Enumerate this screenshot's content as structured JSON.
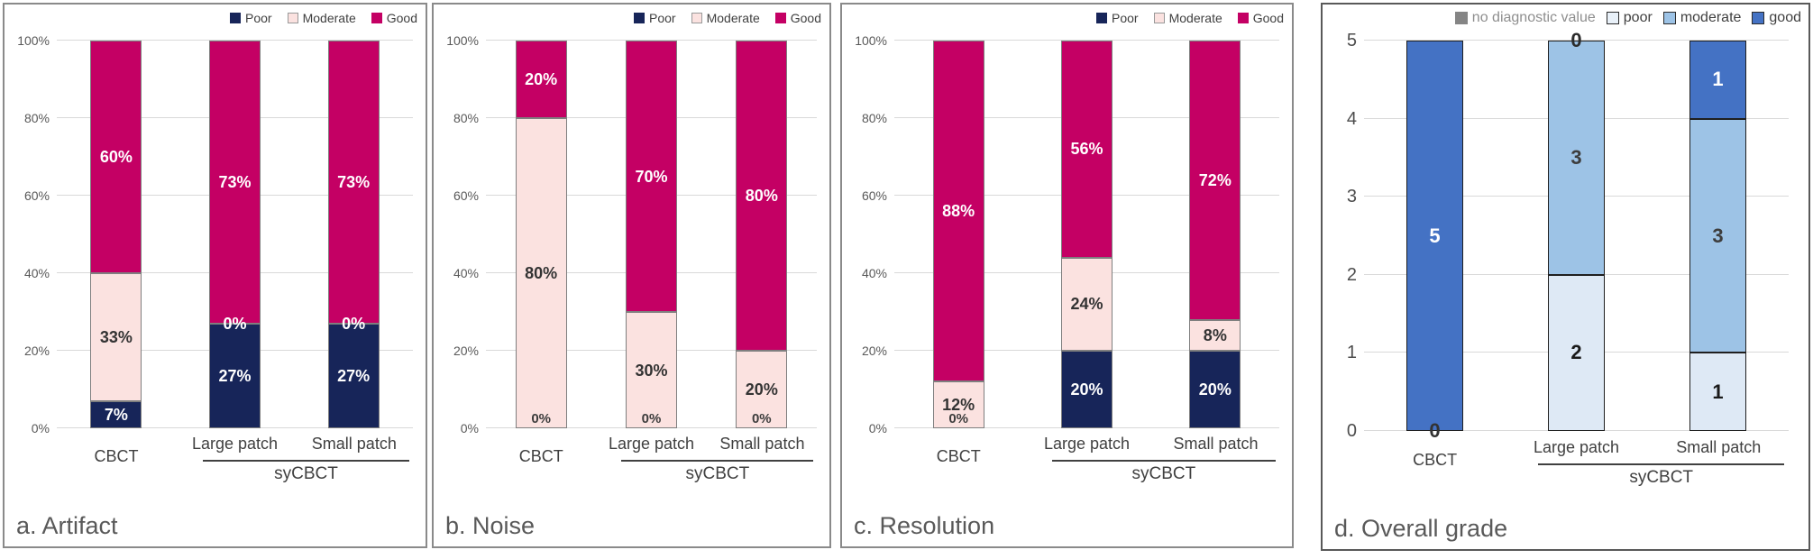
{
  "figure": {
    "background": "#FFFFFF",
    "description_titles": [
      "a. Artifact",
      "b. Noise",
      "c. Resolution",
      "d. Overall grade"
    ]
  },
  "chart_data": [
    {
      "panel_id": "a",
      "type": "bar",
      "stacked": true,
      "title": "a. Artifact",
      "categories": [
        "CBCT",
        "Large patch",
        "Small patch"
      ],
      "group_label": "syCBCT",
      "grouped_categories": [
        "Large patch",
        "Small patch"
      ],
      "ylim": [
        0,
        100
      ],
      "yticks": [
        "0%",
        "20%",
        "40%",
        "60%",
        "80%",
        "100%"
      ],
      "grid": true,
      "legend_position": "top-right",
      "legend": [
        {
          "label": "Poor",
          "fill": "#172559",
          "border": "#172559"
        },
        {
          "label": "Moderate",
          "fill": "#FBE2E0",
          "border": "#999999"
        },
        {
          "label": "Good",
          "fill": "#C40064",
          "border": "#C40064"
        }
      ],
      "series": [
        {
          "name": "Poor",
          "color": "#172559",
          "values": [
            7,
            27,
            27
          ],
          "labels": [
            {
              "text": "7%",
              "color": "#FFFFFF",
              "place": "center"
            },
            {
              "text": "27%",
              "color": "#FFFFFF",
              "place": "center"
            },
            {
              "text": "27%",
              "color": "#FFFFFF",
              "place": "center"
            }
          ]
        },
        {
          "name": "Moderate",
          "color": "#FBE2E0",
          "values": [
            33,
            0,
            0
          ],
          "labels": [
            {
              "text": "33%",
              "color": "#333333",
              "place": "center"
            },
            {
              "text": "0%",
              "color": "#FFFFFF",
              "place": "top-edge"
            },
            {
              "text": "0%",
              "color": "#FFFFFF",
              "place": "top-edge"
            }
          ]
        },
        {
          "name": "Good",
          "color": "#C40064",
          "values": [
            60,
            73,
            73
          ],
          "labels": [
            {
              "text": "60%",
              "color": "#FFFFFF",
              "place": "center"
            },
            {
              "text": "73%",
              "color": "#FFFFFF",
              "place": "center"
            },
            {
              "text": "73%",
              "color": "#FFFFFF",
              "place": "center"
            }
          ]
        }
      ]
    },
    {
      "panel_id": "b",
      "type": "bar",
      "stacked": true,
      "title": "b. Noise",
      "categories": [
        "CBCT",
        "Large patch",
        "Small patch"
      ],
      "group_label": "syCBCT",
      "grouped_categories": [
        "Large patch",
        "Small patch"
      ],
      "ylim": [
        0,
        100
      ],
      "yticks": [
        "0%",
        "20%",
        "40%",
        "60%",
        "80%",
        "100%"
      ],
      "grid": true,
      "legend_position": "top-right",
      "legend": [
        {
          "label": "Poor",
          "fill": "#172559",
          "border": "#172559"
        },
        {
          "label": "Moderate",
          "fill": "#FBE2E0",
          "border": "#999999"
        },
        {
          "label": "Good",
          "fill": "#C40064",
          "border": "#C40064"
        }
      ],
      "series": [
        {
          "name": "Poor",
          "color": "#172559",
          "values": [
            0,
            0,
            0
          ],
          "labels": [
            {
              "text": "0%",
              "color": "#3d3d3d",
              "place": "bottom-in"
            },
            {
              "text": "0%",
              "color": "#3d3d3d",
              "place": "bottom-in"
            },
            {
              "text": "0%",
              "color": "#3d3d3d",
              "place": "bottom-in"
            }
          ]
        },
        {
          "name": "Moderate",
          "color": "#FBE2E0",
          "values": [
            80,
            30,
            20
          ],
          "labels": [
            {
              "text": "80%",
              "color": "#333333",
              "place": "center"
            },
            {
              "text": "30%",
              "color": "#333333",
              "place": "center"
            },
            {
              "text": "20%",
              "color": "#333333",
              "place": "center"
            }
          ]
        },
        {
          "name": "Good",
          "color": "#C40064",
          "values": [
            20,
            70,
            80
          ],
          "labels": [
            {
              "text": "20%",
              "color": "#FFFFFF",
              "place": "center"
            },
            {
              "text": "70%",
              "color": "#FFFFFF",
              "place": "center"
            },
            {
              "text": "80%",
              "color": "#FFFFFF",
              "place": "center"
            }
          ]
        }
      ]
    },
    {
      "panel_id": "c",
      "type": "bar",
      "stacked": true,
      "title": "c. Resolution",
      "categories": [
        "CBCT",
        "Large patch",
        "Small patch"
      ],
      "group_label": "syCBCT",
      "grouped_categories": [
        "Large patch",
        "Small patch"
      ],
      "ylim": [
        0,
        100
      ],
      "yticks": [
        "0%",
        "20%",
        "40%",
        "60%",
        "80%",
        "100%"
      ],
      "grid": true,
      "legend_position": "top-right",
      "legend": [
        {
          "label": "Poor",
          "fill": "#172559",
          "border": "#172559"
        },
        {
          "label": "Moderate",
          "fill": "#FBE2E0",
          "border": "#999999"
        },
        {
          "label": "Good",
          "fill": "#C40064",
          "border": "#C40064"
        }
      ],
      "series": [
        {
          "name": "Poor",
          "color": "#172559",
          "values": [
            0,
            20,
            20
          ],
          "labels": [
            {
              "text": "0%",
              "color": "#3d3d3d",
              "place": "bottom-in"
            },
            {
              "text": "20%",
              "color": "#FFFFFF",
              "place": "center"
            },
            {
              "text": "20%",
              "color": "#FFFFFF",
              "place": "center"
            }
          ]
        },
        {
          "name": "Moderate",
          "color": "#FBE2E0",
          "values": [
            12,
            24,
            8
          ],
          "labels": [
            {
              "text": "12%",
              "color": "#333333",
              "place": "center"
            },
            {
              "text": "24%",
              "color": "#333333",
              "place": "center"
            },
            {
              "text": "8%",
              "color": "#333333",
              "place": "center"
            }
          ]
        },
        {
          "name": "Good",
          "color": "#C40064",
          "values": [
            88,
            56,
            72
          ],
          "labels": [
            {
              "text": "88%",
              "color": "#FFFFFF",
              "place": "center"
            },
            {
              "text": "56%",
              "color": "#FFFFFF",
              "place": "center"
            },
            {
              "text": "72%",
              "color": "#FFFFFF",
              "place": "center"
            }
          ]
        }
      ]
    },
    {
      "panel_id": "d",
      "type": "bar",
      "stacked": true,
      "title": "d. Overall grade",
      "categories": [
        "CBCT",
        "Large patch",
        "Small patch"
      ],
      "group_label": "syCBCT",
      "grouped_categories": [
        "Large patch",
        "Small patch"
      ],
      "ylim": [
        0,
        5
      ],
      "yticks": [
        "0",
        "1",
        "2",
        "3",
        "4",
        "5"
      ],
      "grid": true,
      "legend_position": "top-right",
      "legend": [
        {
          "label": "no diagnostic value",
          "fill": "#858585",
          "border": "#858585",
          "text_color": "#8e8e8e"
        },
        {
          "label": "poor",
          "fill": "#E9F1F9",
          "border": "#2b2b2b"
        },
        {
          "label": "moderate",
          "fill": "#9DC3E6",
          "border": "#2b2b2b"
        },
        {
          "label": "good",
          "fill": "#4472C4",
          "border": "#2b2b2b"
        }
      ],
      "series": [
        {
          "name": "no diagnostic value",
          "color": "#858585",
          "values": [
            0,
            0,
            0
          ],
          "labels": [
            null,
            null,
            null
          ]
        },
        {
          "name": "poor",
          "color": "#DEE9F5",
          "values": [
            0,
            2,
            1
          ],
          "labels": [
            {
              "text": "0",
              "color": "#333333",
              "place": "bottom-edge"
            },
            {
              "text": "2",
              "color": "#1a1a1a",
              "place": "center"
            },
            {
              "text": "1",
              "color": "#1a1a1a",
              "place": "center"
            }
          ]
        },
        {
          "name": "moderate",
          "color": "#9DC3E6",
          "values": [
            0,
            3,
            3
          ],
          "labels": [
            null,
            {
              "text": "3",
              "color": "#3d3d3d",
              "place": "center"
            },
            {
              "text": "3",
              "color": "#3d3d3d",
              "place": "center"
            }
          ]
        },
        {
          "name": "good",
          "color": "#4472C4",
          "values": [
            5,
            0,
            1
          ],
          "labels": [
            {
              "text": "5",
              "color": "#FFFFFF",
              "place": "center"
            },
            {
              "text": "0",
              "color": "#2b2b2b",
              "place": "top-edge"
            },
            {
              "text": "1",
              "color": "#FFFFFF",
              "place": "center"
            }
          ]
        }
      ]
    }
  ]
}
